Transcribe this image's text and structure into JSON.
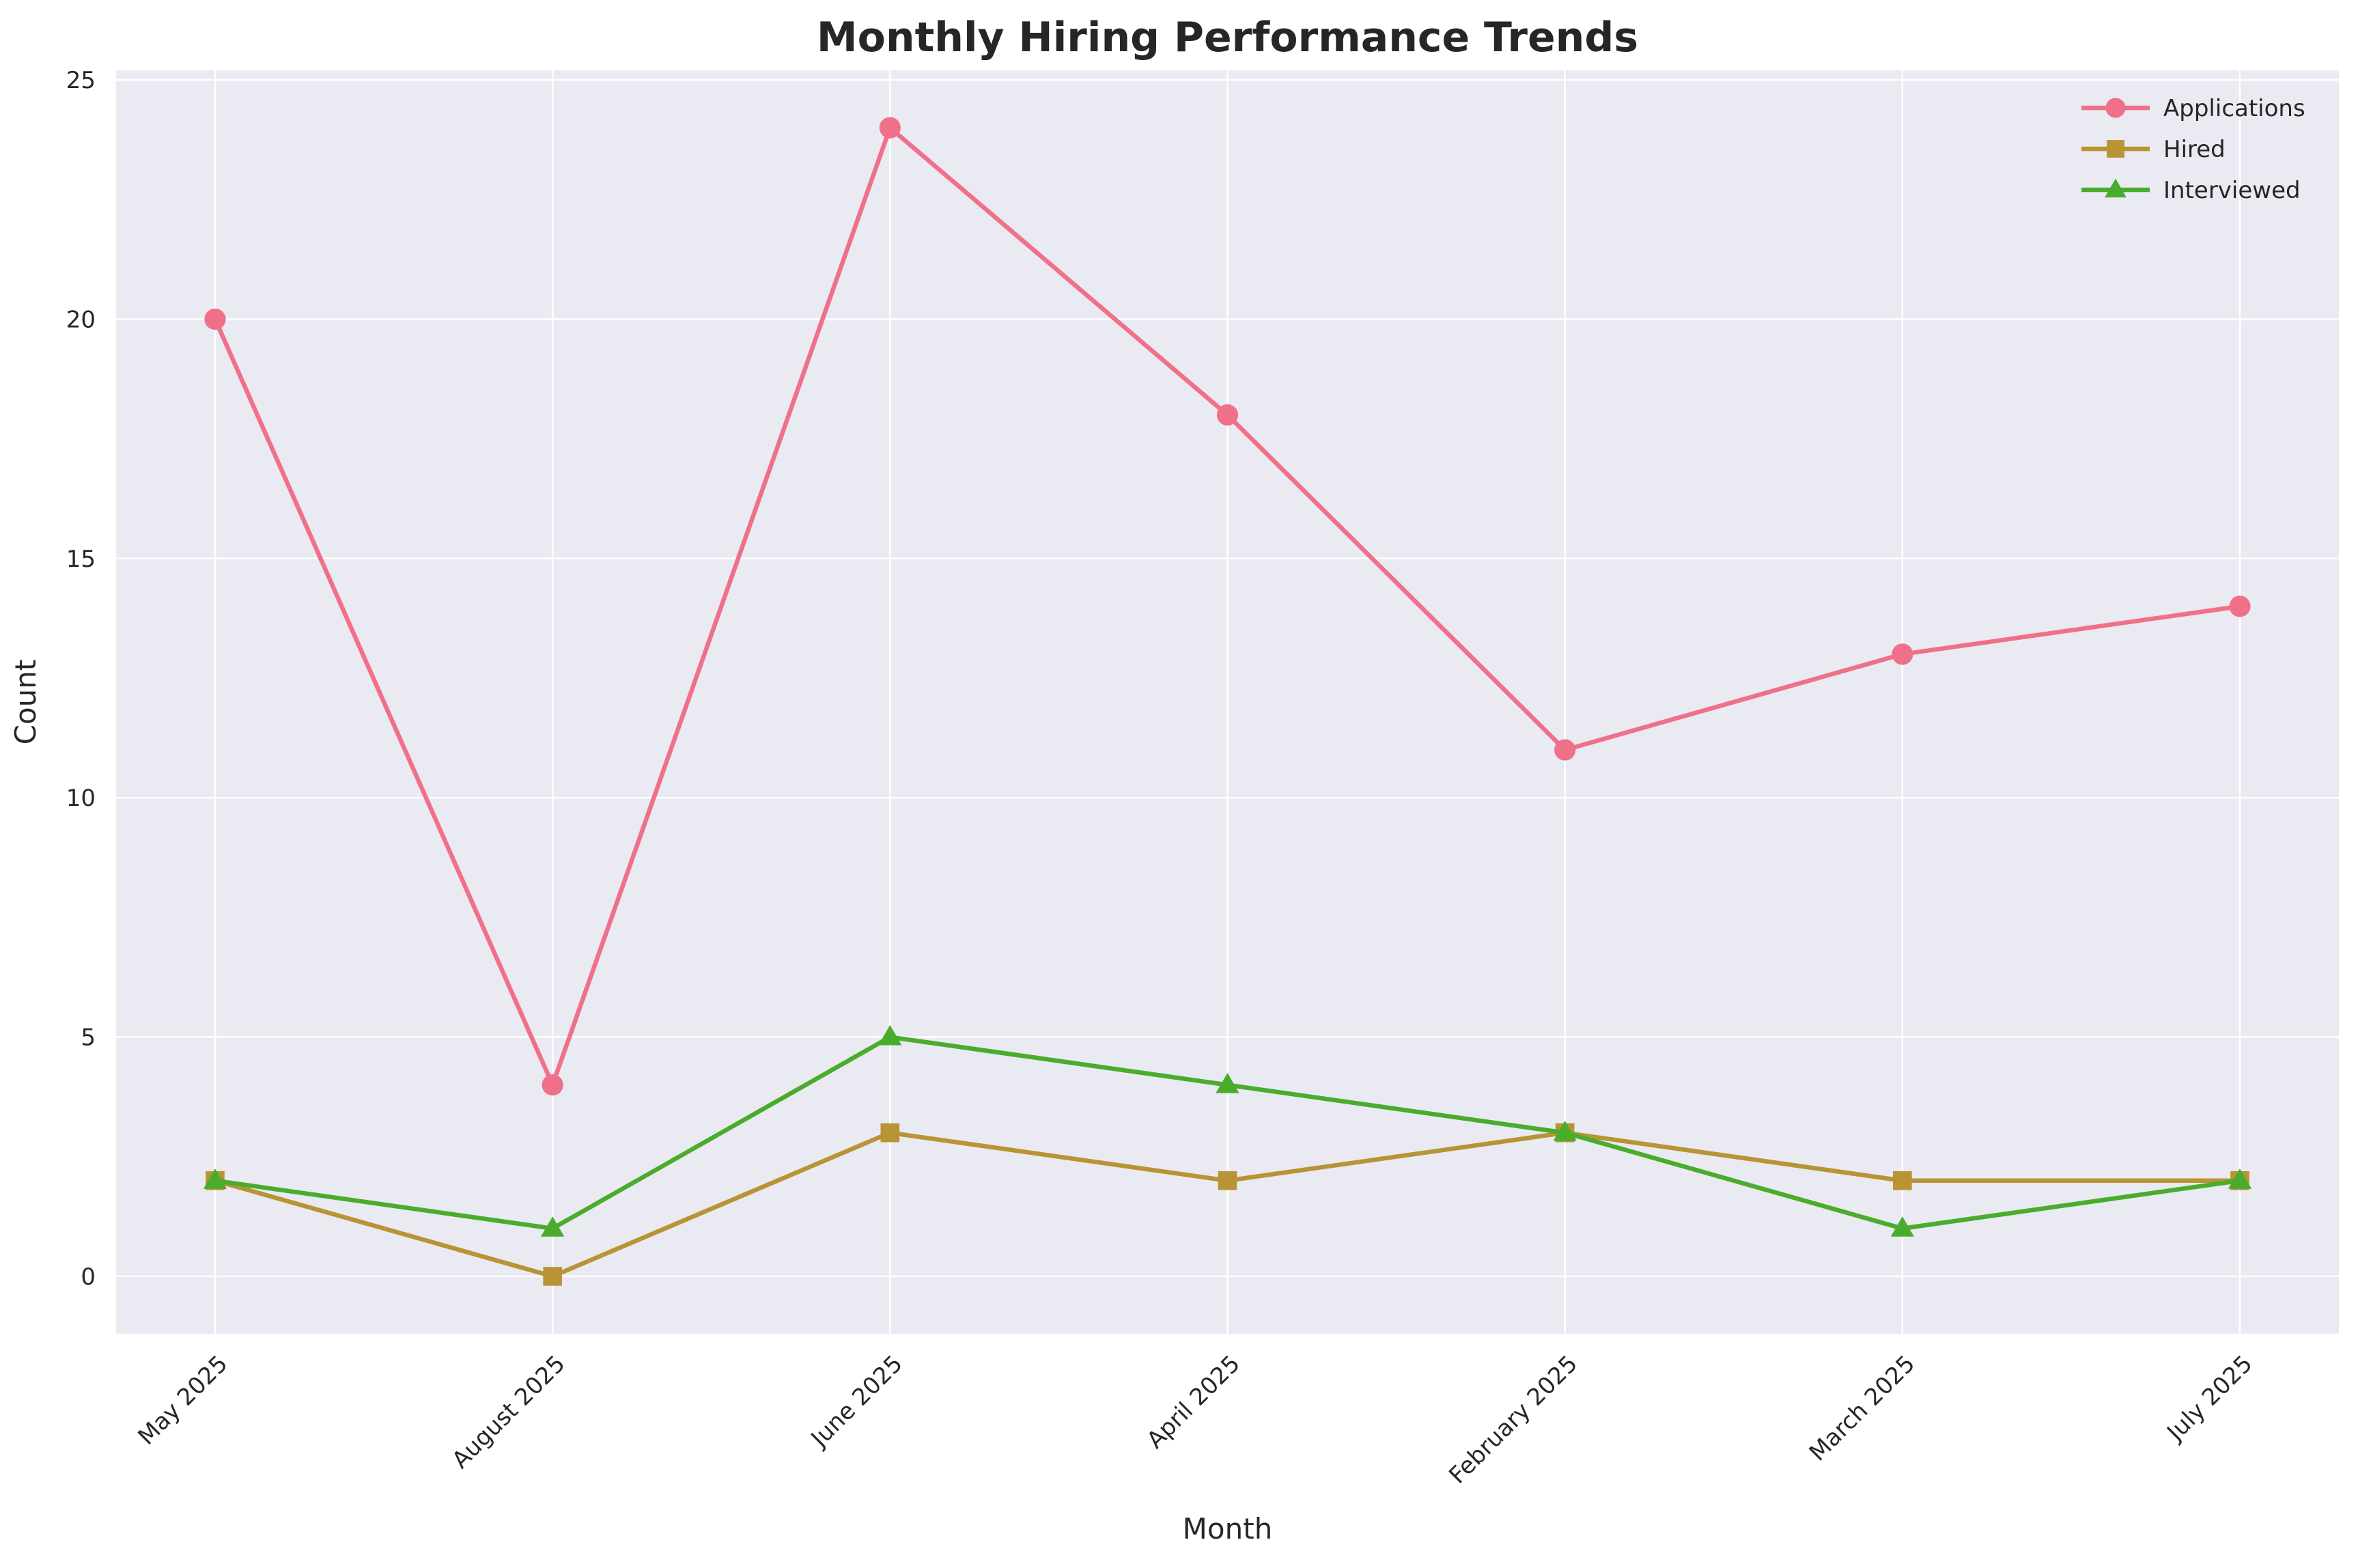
{
  "chart_data": {
    "type": "line",
    "title": "Monthly Hiring Performance Trends",
    "xlabel": "Month",
    "ylabel": "Count",
    "categories": [
      "May 2025",
      "August 2025",
      "June 2025",
      "April 2025",
      "February 2025",
      "March 2025",
      "July 2025"
    ],
    "ylim": [
      -1.2,
      25.2
    ],
    "yticks": [
      0,
      5,
      10,
      15,
      20,
      25
    ],
    "grid": true,
    "legend_position": "top-right",
    "series": [
      {
        "name": "Applications",
        "values": [
          20,
          4,
          24,
          18,
          11,
          13,
          14
        ],
        "color": "#f0708a",
        "marker": "circle"
      },
      {
        "name": "Hired",
        "values": [
          2,
          0,
          3,
          2,
          3,
          2,
          2
        ],
        "color": "#b89434",
        "marker": "square"
      },
      {
        "name": "Interviewed",
        "values": [
          2,
          1,
          5,
          4,
          3,
          1,
          2
        ],
        "color": "#4aac2c",
        "marker": "triangle"
      }
    ],
    "background_color": "#eaeaf2",
    "grid_color": "#ffffff"
  }
}
